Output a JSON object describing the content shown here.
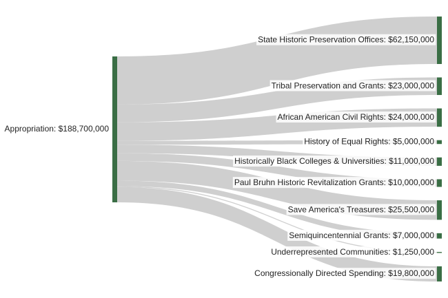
{
  "chart_data": {
    "type": "sankey",
    "source": {
      "name": "Appropriation",
      "value": 188700000,
      "label": "Appropriation: $188,700,000"
    },
    "targets": [
      {
        "name": "State Historic Preservation Offices",
        "value": 62150000,
        "label": "State Historic Preservation Offices: $62,150,000"
      },
      {
        "name": "Tribal Preservation and Grants",
        "value": 23000000,
        "label": "Tribal Preservation and Grants: $23,000,000"
      },
      {
        "name": "African American Civil Rights",
        "value": 24000000,
        "label": "African American Civil Rights: $24,000,000"
      },
      {
        "name": "History of Equal Rights",
        "value": 5000000,
        "label": "History of Equal Rights: $5,000,000"
      },
      {
        "name": "Historically Black Colleges & Universities",
        "value": 11000000,
        "label": "Historically Black Colleges & Universities: $11,000,000"
      },
      {
        "name": "Paul Bruhn Historic Revitalization Grants",
        "value": 10000000,
        "label": "Paul Bruhn Historic Revitalization Grants: $10,000,000"
      },
      {
        "name": "Save America's Treasures",
        "value": 25500000,
        "label": "Save America's Treasures: $25,500,000"
      },
      {
        "name": "Semiquincentennial Grants",
        "value": 7000000,
        "label": "Semiquincentennial Grants: $7,000,000"
      },
      {
        "name": "Underrepresented Communities",
        "value": 1250000,
        "label": "Underrepresented Communities: $1,250,000"
      },
      {
        "name": "Congressionally Directed Spending",
        "value": 19800000,
        "label": "Congressionally Directed Spending: $19,800,000"
      }
    ],
    "colors": {
      "node": "#3a6e45",
      "link": "#cccccc",
      "label_background": "#ffffff"
    }
  }
}
